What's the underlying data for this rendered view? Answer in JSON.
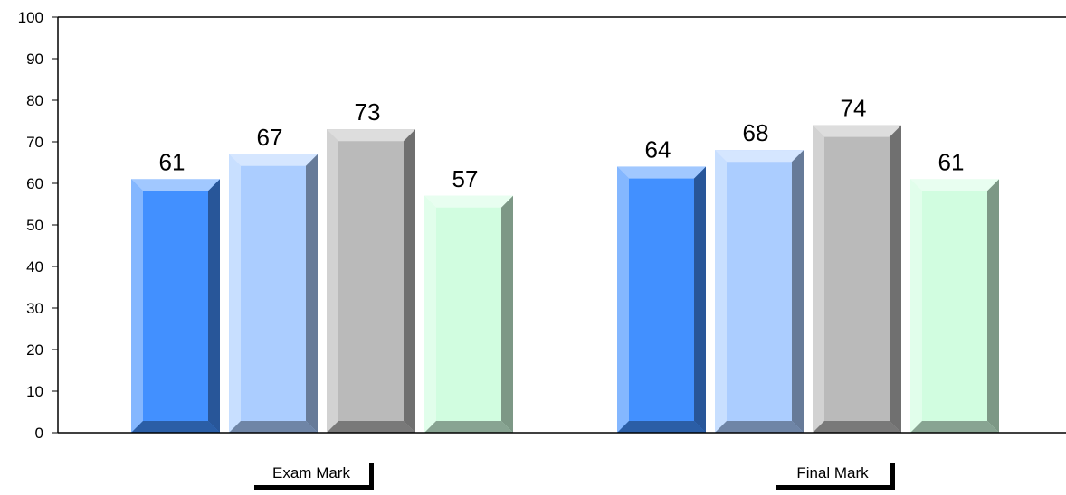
{
  "chart_data": {
    "type": "bar",
    "categories": [
      "Exam Mark",
      "Final Mark"
    ],
    "series": [
      {
        "values": [
          61,
          64
        ],
        "color": "#4290ff"
      },
      {
        "values": [
          67,
          68
        ],
        "color": "#abcdff"
      },
      {
        "values": [
          73,
          74
        ],
        "color": "#bababa"
      },
      {
        "values": [
          57,
          61
        ],
        "color": "#d1fde0"
      }
    ],
    "ylim": [
      0,
      100
    ],
    "yticks": [
      0,
      10,
      20,
      30,
      40,
      50,
      60,
      70,
      80,
      90,
      100
    ],
    "grid": false,
    "legend": "none",
    "style": "3d-beveled-bars"
  }
}
